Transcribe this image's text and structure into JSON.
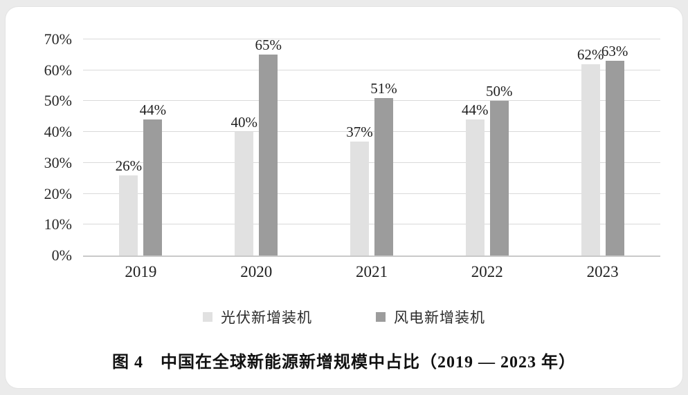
{
  "page": {
    "background": "#ebebeb",
    "card_background": "#ffffff"
  },
  "chart_data": {
    "type": "bar",
    "title": "中国在全球新能源新增规模中占比（2019—2023 年）",
    "figure_label": "图 4",
    "categories": [
      "2019",
      "2020",
      "2021",
      "2022",
      "2023"
    ],
    "series": [
      {
        "name": "光伏新增装机",
        "color": "#e1e1e1",
        "values": [
          26,
          40,
          37,
          44,
          62
        ]
      },
      {
        "name": "风电新增装机",
        "color": "#9c9c9c",
        "values": [
          44,
          65,
          51,
          50,
          63
        ]
      }
    ],
    "value_label_suffix": "%",
    "y_ticks": [
      0,
      10,
      20,
      30,
      40,
      50,
      60,
      70
    ],
    "y_tick_suffix": "%",
    "ylim": [
      0,
      70
    ],
    "grid": true,
    "legend_position": "bottom",
    "gridline_color": "#d9d9d9",
    "axis_line_color": "#c9c9c9"
  },
  "caption": {
    "text": "图 4　中国在全球新能源新增规模中占比（2019 — 2023 年）"
  }
}
